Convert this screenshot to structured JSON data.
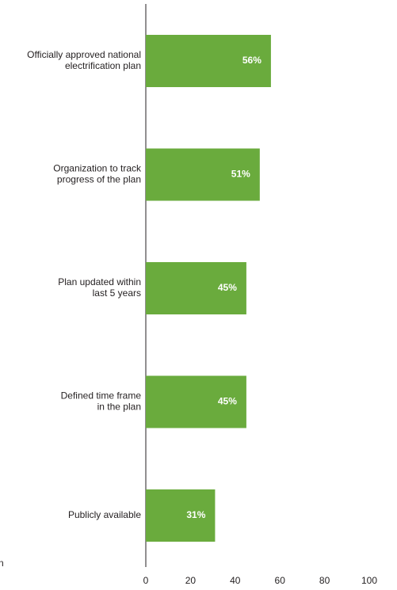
{
  "chart_data": {
    "type": "hbar",
    "categories": [
      [
        "Officially approved national",
        "electrification plan"
      ],
      [
        "Organization to track",
        "progress of the plan"
      ],
      [
        "Plan updated within",
        "last 5 years"
      ],
      [
        "Defined time frame",
        "in the plan"
      ],
      [
        "Publicly available"
      ]
    ],
    "values": [
      56,
      51,
      45,
      45,
      31
    ],
    "value_labels": [
      "56%",
      "51%",
      "45%",
      "45%",
      "31%"
    ],
    "color": "#6aab3d",
    "xlim": [
      0,
      100
    ],
    "xticks": [
      0,
      20,
      40,
      60,
      80,
      100
    ],
    "annotation": "n"
  }
}
